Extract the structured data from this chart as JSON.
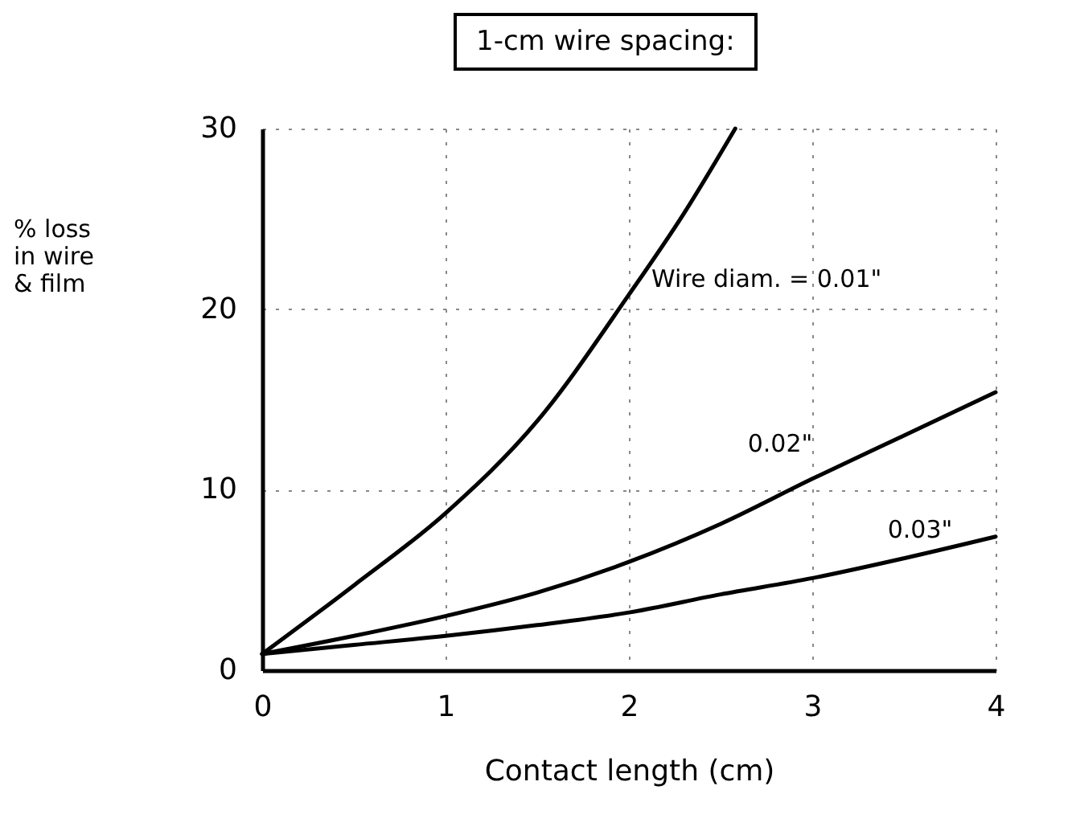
{
  "chart_data": {
    "type": "line",
    "title": "1-cm wire spacing:",
    "xlabel": "Contact length (cm)",
    "ylabel": "% loss in wire & film",
    "x": [
      0,
      0.5,
      1,
      1.5,
      2,
      2.3,
      2.58
    ],
    "xlim": [
      0,
      4
    ],
    "xticks": [
      0,
      1,
      2,
      3,
      4
    ],
    "ylim": [
      0,
      30
    ],
    "yticks": [
      0,
      10,
      20,
      30
    ],
    "grid": true,
    "line_style": "solid",
    "series": [
      {
        "name": "Wire diam. = 0.01\"",
        "color": "#000000",
        "values": [
          0.9,
          4.7,
          8.7,
          13.8,
          20.8,
          25.3,
          30
        ]
      },
      {
        "name": "0.02\"",
        "color": "#000000",
        "x": [
          0,
          0.5,
          1,
          1.5,
          2,
          2.5,
          3,
          3.5,
          4
        ],
        "values": [
          0.9,
          1.9,
          3,
          4.3,
          6,
          8.1,
          10.6,
          13,
          15.4
        ]
      },
      {
        "name": "0.03\"",
        "color": "#000000",
        "x": [
          0,
          0.5,
          1,
          1.5,
          2,
          2.5,
          3,
          3.5,
          4
        ],
        "values": [
          0.9,
          1.4,
          1.9,
          2.5,
          3.2,
          4.2,
          5.1,
          6.2,
          7.4
        ]
      }
    ]
  }
}
